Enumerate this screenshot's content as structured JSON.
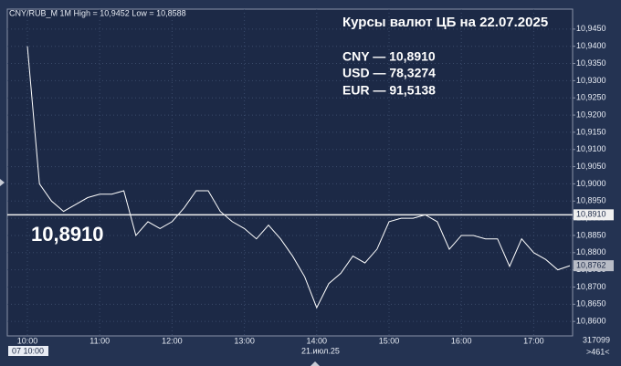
{
  "chart_data": {
    "type": "line",
    "header": "CNY/RUB_M 1M High = 10,9452 Low = 10,8588",
    "title": "Курсы валют ЦБ на 22.07.2025",
    "rates": [
      "CNY — 10,8910",
      "USD — 78,3274",
      "EUR — 91,5138"
    ],
    "categories": [
      "10:00",
      null,
      null,
      null,
      null,
      null,
      "11:00",
      null,
      null,
      null,
      null,
      null,
      "12:00",
      null,
      null,
      null,
      null,
      null,
      "13:00",
      null,
      null,
      null,
      null,
      null,
      "14:00",
      null,
      null,
      null,
      null,
      null,
      "15:00",
      null,
      null,
      null,
      null,
      null,
      "16:00",
      null,
      null,
      null,
      null,
      null,
      "17:00",
      null,
      null,
      null
    ],
    "series": [
      {
        "name": "CNY/RUB_M",
        "color": "#ffffff",
        "values": [
          10.94,
          10.9,
          10.895,
          10.892,
          10.894,
          10.896,
          10.897,
          10.897,
          10.898,
          10.885,
          10.889,
          10.887,
          10.889,
          10.893,
          10.898,
          10.898,
          10.892,
          10.889,
          10.887,
          10.884,
          10.888,
          10.884,
          10.879,
          10.873,
          10.864,
          10.871,
          10.874,
          10.879,
          10.877,
          10.881,
          10.889,
          10.89,
          10.89,
          10.891,
          10.889,
          10.881,
          10.885,
          10.885,
          10.884,
          10.884,
          10.876,
          10.884,
          10.88,
          10.878,
          10.875,
          10.8762
        ]
      }
    ],
    "ylim": [
      10.8558,
      10.9508
    ],
    "yticks": [
      {
        "value": 10.86,
        "label": "10,8600"
      },
      {
        "value": 10.865,
        "label": "10,8650"
      },
      {
        "value": 10.87,
        "label": "10,8700"
      },
      {
        "value": 10.875,
        "label": "10,8750"
      },
      {
        "value": 10.88,
        "label": "10,8800"
      },
      {
        "value": 10.885,
        "label": "10,8850"
      },
      {
        "value": 10.89,
        "label": "10,8900"
      },
      {
        "value": 10.895,
        "label": "10,8950"
      },
      {
        "value": 10.9,
        "label": "10,9000"
      },
      {
        "value": 10.905,
        "label": "10,9050"
      },
      {
        "value": 10.91,
        "label": "10,9100"
      },
      {
        "value": 10.915,
        "label": "10,9150"
      },
      {
        "value": 10.92,
        "label": "10,9200"
      },
      {
        "value": 10.925,
        "label": "10,9250"
      },
      {
        "value": 10.93,
        "label": "10,9300"
      },
      {
        "value": 10.935,
        "label": "10,9350"
      },
      {
        "value": 10.94,
        "label": "10,9400"
      },
      {
        "value": 10.945,
        "label": "10,9450"
      }
    ],
    "grid": true,
    "cb_rate": {
      "value": 10.891,
      "label": "10,8910"
    },
    "last_price": {
      "value": 10.8762,
      "label": "10,8762"
    },
    "date_label": "21.июл.25",
    "cursor_time": "07 10:00",
    "volume": "317099",
    "shift": ">461<"
  }
}
